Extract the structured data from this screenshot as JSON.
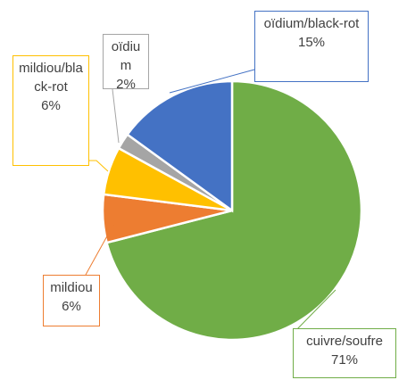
{
  "chart_data": {
    "type": "pie",
    "categories": [
      "cuivre/soufre",
      "mildiou",
      "mildiou/black-rot",
      "oïdium",
      "oïdium/black-rot"
    ],
    "values": [
      71,
      6,
      6,
      2,
      15
    ],
    "value_labels": [
      "71%",
      "6%",
      "6%",
      "2%",
      "15%"
    ],
    "colors": [
      "#70ad47",
      "#ed7d31",
      "#ffc000",
      "#a5a5a5",
      "#4472c4"
    ]
  }
}
